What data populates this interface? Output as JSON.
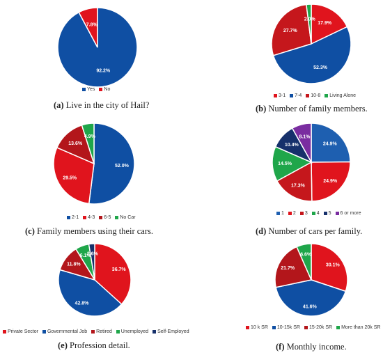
{
  "chart_data": [
    {
      "type": "pie",
      "caption_letter": "(a)",
      "caption_text": "Live in the city of Hail?",
      "slices": [
        {
          "name": "Yes",
          "value": 92.2,
          "label": "92.2%",
          "color": "#0f4fa3"
        },
        {
          "name": "No",
          "value": 7.8,
          "label": "7.8%",
          "color": "#e0141d"
        }
      ]
    },
    {
      "type": "pie",
      "caption_letter": "(b)",
      "caption_text": "Number of family members.",
      "slices": [
        {
          "name": "3-1",
          "value": 17.9,
          "label": "17.9%",
          "color": "#e0141d"
        },
        {
          "name": "7-4",
          "value": 52.3,
          "label": "52.3%",
          "color": "#0f4fa3"
        },
        {
          "name": "10-8",
          "value": 27.7,
          "label": "27.7%",
          "color": "#c5171c"
        },
        {
          "name": "Living Alone",
          "value": 2.0,
          "label": "2.0%",
          "color": "#1fa64a"
        }
      ]
    },
    {
      "type": "pie",
      "caption_letter": "(c)",
      "caption_text": "Family members using their cars.",
      "slices": [
        {
          "name": "2-1",
          "value": 52.0,
          "label": "52.0%",
          "color": "#0f4fa3"
        },
        {
          "name": "4-3",
          "value": 29.5,
          "label": "29.5%",
          "color": "#e0141d"
        },
        {
          "name": "6-5",
          "value": 13.6,
          "label": "13.6%",
          "color": "#b3161b"
        },
        {
          "name": "No Car",
          "value": 4.9,
          "label": "4.9%",
          "color": "#1fa64a"
        }
      ]
    },
    {
      "type": "pie",
      "caption_letter": "(d)",
      "caption_text": "Number of cars per family.",
      "slices": [
        {
          "name": "1",
          "value": 24.9,
          "label": "24.9%",
          "color": "#1e5fb0"
        },
        {
          "name": "2",
          "value": 24.9,
          "label": "24.9%",
          "color": "#e0141d"
        },
        {
          "name": "3",
          "value": 17.3,
          "label": "17.3%",
          "color": "#c5171c"
        },
        {
          "name": "4",
          "value": 14.5,
          "label": "14.5%",
          "color": "#1fa64a"
        },
        {
          "name": "5",
          "value": 10.4,
          "label": "10.4%",
          "color": "#16306b"
        },
        {
          "name": "6 or more",
          "value": 8.1,
          "label": "8.1%",
          "color": "#7a2da0"
        }
      ]
    },
    {
      "type": "pie",
      "caption_letter": "(e)",
      "caption_text": "Profession detail.",
      "slices": [
        {
          "name": "Private Sector",
          "value": 36.7,
          "label": "36.7%",
          "color": "#e0141d"
        },
        {
          "name": "Governmental Job",
          "value": 42.8,
          "label": "42.8%",
          "color": "#0f4fa3"
        },
        {
          "name": "Retired",
          "value": 11.8,
          "label": "11.8%",
          "color": "#b3161b"
        },
        {
          "name": "Unemployed",
          "value": 6.1,
          "label": "6.1%",
          "color": "#1fa64a"
        },
        {
          "name": "Self-Employed",
          "value": 2.6,
          "label": "2.6%",
          "color": "#16306b"
        }
      ]
    },
    {
      "type": "pie",
      "caption_letter": "(f)",
      "caption_text": "Monthly income.",
      "slices": [
        {
          "name": "10 k SR",
          "value": 30.1,
          "label": "30.1%",
          "color": "#e0141d"
        },
        {
          "name": "10-15k SR",
          "value": 41.6,
          "label": "41.6%",
          "color": "#0f4fa3"
        },
        {
          "name": "15-20k SR",
          "value": 21.7,
          "label": "21.7%",
          "color": "#b3161b"
        },
        {
          "name": "More than 20k SR",
          "value": 6.6,
          "label": "6.6%",
          "color": "#1fa64a"
        }
      ]
    }
  ]
}
